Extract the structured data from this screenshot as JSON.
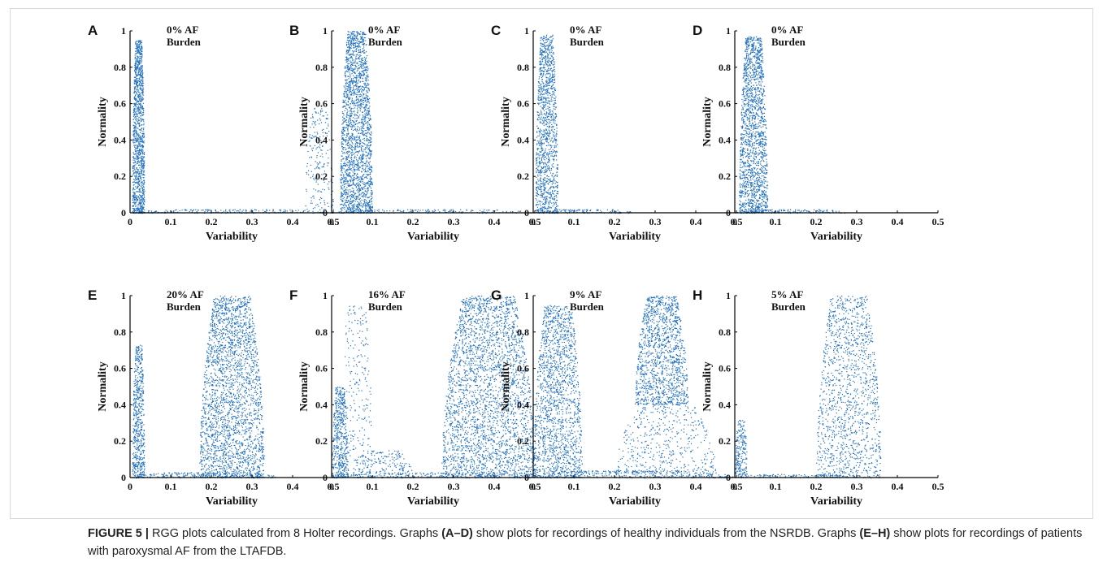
{
  "caption": {
    "label": "FIGURE 5 |",
    "parts": [
      {
        "t": " RGG plots calculated from 8 Holter recordings. Graphs ",
        "b": false
      },
      {
        "t": "(A–D)",
        "b": true
      },
      {
        "t": " show plots for recordings of healthy individuals from the NSRDB. Graphs ",
        "b": false
      },
      {
        "t": "(E–H)",
        "b": true
      },
      {
        "t": " show plots for recordings of patients with paroxysmal AF from the LTAFDB.",
        "b": false
      }
    ]
  },
  "point_color": "#1f6fbf",
  "chart_data": [
    {
      "panel": "A",
      "type": "scatter",
      "title": [
        "0% AF",
        "Burden"
      ],
      "xlabel": "Variability",
      "ylabel": "Normality",
      "xlim": [
        0,
        0.5
      ],
      "ylim": [
        0,
        1
      ],
      "xticks": [
        "0",
        "0.1",
        "0.2",
        "0.3",
        "0.4",
        "0.5"
      ],
      "yticks": [
        "0",
        "0.2",
        "0.4",
        "0.6",
        "0.8",
        "1"
      ],
      "clusters": [
        {
          "x": [
            0.005,
            0.035
          ],
          "y": [
            0.0,
            0.95
          ],
          "n": 1300
        },
        {
          "x": [
            0.43,
            0.5
          ],
          "y": [
            0.0,
            0.58
          ],
          "n": 220
        },
        {
          "x": [
            0.0,
            0.5
          ],
          "y": [
            0.0,
            0.02
          ],
          "n": 200
        }
      ]
    },
    {
      "panel": "B",
      "type": "scatter",
      "title": [
        "0% AF",
        "Burden"
      ],
      "xlabel": "Variability",
      "ylabel": "Normality",
      "xlim": [
        0,
        0.5
      ],
      "ylim": [
        0,
        1
      ],
      "xticks": [
        "0",
        "0.1",
        "0.2",
        "0.3",
        "0.4",
        "0.5"
      ],
      "yticks": [
        "0",
        "0.2",
        "0.4",
        "0.6",
        "0.8",
        "1"
      ],
      "clusters": [
        {
          "x": [
            0.02,
            0.1
          ],
          "y": [
            0.0,
            1.0
          ],
          "n": 2200
        },
        {
          "x": [
            0.0,
            0.5
          ],
          "y": [
            0.0,
            0.02
          ],
          "n": 160
        }
      ]
    },
    {
      "panel": "C",
      "type": "scatter",
      "title": [
        "0% AF",
        "Burden"
      ],
      "xlabel": "Variability",
      "ylabel": "Normality",
      "xlim": [
        0,
        0.5
      ],
      "ylim": [
        0,
        1
      ],
      "xticks": [
        "0",
        "0.1",
        "0.2",
        "0.3",
        "0.4",
        "0.5"
      ],
      "yticks": [
        "0",
        "0.2",
        "0.4",
        "0.6",
        "0.8",
        "1"
      ],
      "clusters": [
        {
          "x": [
            0.005,
            0.06
          ],
          "y": [
            0.0,
            0.98
          ],
          "n": 1300
        },
        {
          "x": [
            0.0,
            0.25
          ],
          "y": [
            0.0,
            0.02
          ],
          "n": 120
        }
      ]
    },
    {
      "panel": "D",
      "type": "scatter",
      "title": [
        "0% AF",
        "Burden"
      ],
      "xlabel": "Variability",
      "ylabel": "Normality",
      "xlim": [
        0,
        0.5
      ],
      "ylim": [
        0,
        1
      ],
      "xticks": [
        "0",
        "0.1",
        "0.2",
        "0.3",
        "0.4",
        "0.5"
      ],
      "yticks": [
        "0",
        "0.2",
        "0.4",
        "0.6",
        "0.8",
        "1"
      ],
      "clusters": [
        {
          "x": [
            0.01,
            0.08
          ],
          "y": [
            0.0,
            0.97
          ],
          "n": 1800
        },
        {
          "x": [
            0.0,
            0.28
          ],
          "y": [
            0.0,
            0.02
          ],
          "n": 130
        }
      ]
    },
    {
      "panel": "E",
      "type": "scatter",
      "title": [
        "20% AF",
        "Burden"
      ],
      "xlabel": "Variability",
      "ylabel": "Normality",
      "xlim": [
        0,
        0.5
      ],
      "ylim": [
        0,
        1
      ],
      "xticks": [
        "0",
        "0.1",
        "0.2",
        "0.3",
        "0.4",
        "0.5"
      ],
      "yticks": [
        "0",
        "0.2",
        "0.4",
        "0.6",
        "0.8",
        "1"
      ],
      "clusters": [
        {
          "x": [
            0.005,
            0.035
          ],
          "y": [
            0.0,
            0.73
          ],
          "n": 600
        },
        {
          "x": [
            0.17,
            0.33
          ],
          "y": [
            0.0,
            1.0
          ],
          "n": 2600
        },
        {
          "x": [
            0.0,
            0.37
          ],
          "y": [
            0.0,
            0.03
          ],
          "n": 220
        }
      ]
    },
    {
      "panel": "F",
      "type": "scatter",
      "title": [
        "16% AF",
        "Burden"
      ],
      "xlabel": "Variability",
      "ylabel": "Normality",
      "xlim": [
        0,
        0.5
      ],
      "ylim": [
        0,
        1
      ],
      "xticks": [
        "0",
        "0.1",
        "0.2",
        "0.3",
        "0.4",
        "0.5"
      ],
      "yticks": [
        "0",
        "0.2",
        "0.4",
        "0.6",
        "0.8",
        "1"
      ],
      "clusters": [
        {
          "x": [
            0.0,
            0.04
          ],
          "y": [
            0.0,
            0.5
          ],
          "n": 500
        },
        {
          "x": [
            0.02,
            0.1
          ],
          "y": [
            0.0,
            0.95
          ],
          "n": 260
        },
        {
          "x": [
            0.05,
            0.2
          ],
          "y": [
            0.0,
            0.15
          ],
          "n": 200
        },
        {
          "x": [
            0.27,
            0.5
          ],
          "y": [
            0.0,
            1.0
          ],
          "n": 3000
        },
        {
          "x": [
            0.0,
            0.5
          ],
          "y": [
            0.0,
            0.03
          ],
          "n": 200
        }
      ]
    },
    {
      "panel": "G",
      "type": "scatter",
      "title": [
        "9% AF",
        "Burden"
      ],
      "xlabel": "Variability",
      "ylabel": "Normality",
      "xlim": [
        0,
        0.5
      ],
      "ylim": [
        0,
        1
      ],
      "xticks": [
        "0",
        "0.1",
        "0.2",
        "0.3",
        "0.4",
        "0.5"
      ],
      "yticks": [
        "0",
        "0.2",
        "0.4",
        "0.6",
        "0.8",
        "1"
      ],
      "clusters": [
        {
          "x": [
            0.0,
            0.12
          ],
          "y": [
            0.0,
            0.95
          ],
          "n": 1700
        },
        {
          "x": [
            0.25,
            0.38
          ],
          "y": [
            0.4,
            1.0
          ],
          "n": 1400
        },
        {
          "x": [
            0.2,
            0.45
          ],
          "y": [
            0.0,
            0.4
          ],
          "n": 500
        },
        {
          "x": [
            0.0,
            0.5
          ],
          "y": [
            0.0,
            0.04
          ],
          "n": 300
        }
      ]
    },
    {
      "panel": "H",
      "type": "scatter",
      "title": [
        "5% AF",
        "Burden"
      ],
      "xlabel": "Variability",
      "ylabel": "Normality",
      "xlim": [
        0,
        0.5
      ],
      "ylim": [
        0,
        1
      ],
      "xticks": [
        "0",
        "0.1",
        "0.2",
        "0.3",
        "0.4",
        "0.5"
      ],
      "yticks": [
        "0",
        "0.2",
        "0.4",
        "0.6",
        "0.8",
        "1"
      ],
      "clusters": [
        {
          "x": [
            0.0,
            0.03
          ],
          "y": [
            0.0,
            0.32
          ],
          "n": 220
        },
        {
          "x": [
            0.2,
            0.36
          ],
          "y": [
            0.0,
            1.0
          ],
          "n": 1400
        },
        {
          "x": [
            0.0,
            0.3
          ],
          "y": [
            0.0,
            0.02
          ],
          "n": 100
        }
      ]
    }
  ]
}
